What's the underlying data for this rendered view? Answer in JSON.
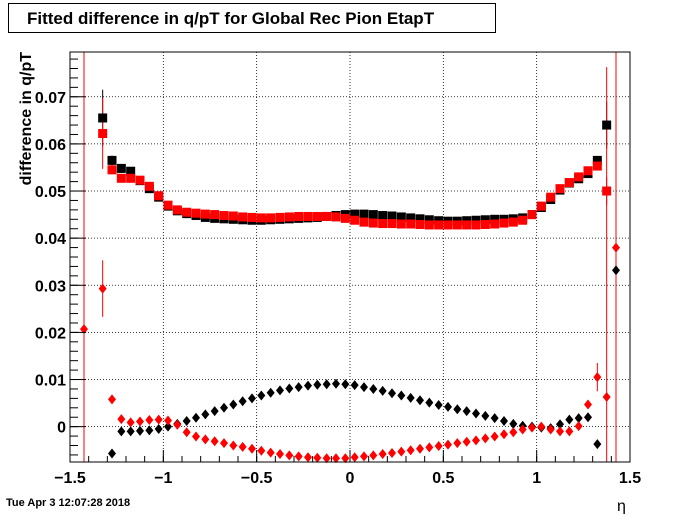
{
  "chart_data": {
    "type": "scatter",
    "title": "Fitted difference in q/pT for Global Rec Pion EtapT",
    "xlabel": "η",
    "ylabel": "difference in q/pT",
    "xlim": [
      -1.5,
      1.5
    ],
    "ylim": [
      -0.0075,
      0.0795
    ],
    "x_ticks": [
      -1.5,
      -1,
      -0.5,
      0,
      0.5,
      1,
      1.5
    ],
    "x_tick_labels": [
      "−1.5",
      "−1",
      "−0.5",
      "0",
      "0.5",
      "1",
      "1.5"
    ],
    "y_ticks": [
      0,
      0.01,
      0.02,
      0.03,
      0.04,
      0.05,
      0.06,
      0.07
    ],
    "y_tick_labels": [
      "0",
      "0.01",
      "0.02",
      "0.03",
      "0.04",
      "0.05",
      "0.06",
      "0.07"
    ],
    "grid": true,
    "series": [
      {
        "marker": "square",
        "color": "#000000",
        "points": [
          [
            -1.325,
            0.0655,
            0.006
          ],
          [
            -1.275,
            0.0565,
            0.001
          ],
          [
            -1.225,
            0.0548,
            0.0005
          ],
          [
            -1.175,
            0.0542,
            0.0003
          ],
          [
            -1.125,
            0.0522,
            0
          ],
          [
            -1.075,
            0.0505,
            0
          ],
          [
            -1.025,
            0.0487,
            0
          ],
          [
            -0.975,
            0.0468,
            0
          ],
          [
            -0.925,
            0.0458,
            0
          ],
          [
            -0.875,
            0.0452,
            0
          ],
          [
            -0.825,
            0.0448,
            0
          ],
          [
            -0.775,
            0.0444,
            0
          ],
          [
            -0.725,
            0.0442,
            0
          ],
          [
            -0.675,
            0.0441,
            0
          ],
          [
            -0.625,
            0.044,
            0
          ],
          [
            -0.575,
            0.0439,
            0
          ],
          [
            -0.525,
            0.0438,
            0
          ],
          [
            -0.475,
            0.0438,
            0
          ],
          [
            -0.425,
            0.0439,
            0
          ],
          [
            -0.375,
            0.044,
            0
          ],
          [
            -0.325,
            0.0441,
            0
          ],
          [
            -0.275,
            0.0442,
            0
          ],
          [
            -0.225,
            0.0443,
            0
          ],
          [
            -0.175,
            0.0444,
            0
          ],
          [
            -0.125,
            0.0446,
            0
          ],
          [
            -0.075,
            0.0448,
            0
          ],
          [
            -0.025,
            0.045,
            0
          ],
          [
            0.025,
            0.0451,
            0
          ],
          [
            0.075,
            0.0451,
            0
          ],
          [
            0.125,
            0.045,
            0
          ],
          [
            0.175,
            0.0448,
            0
          ],
          [
            0.225,
            0.0447,
            0
          ],
          [
            0.275,
            0.0445,
            0
          ],
          [
            0.325,
            0.0443,
            0
          ],
          [
            0.375,
            0.0441,
            0
          ],
          [
            0.425,
            0.0439,
            0
          ],
          [
            0.475,
            0.0437,
            0
          ],
          [
            0.525,
            0.0436,
            0
          ],
          [
            0.575,
            0.0436,
            0
          ],
          [
            0.625,
            0.0437,
            0
          ],
          [
            0.675,
            0.0438,
            0
          ],
          [
            0.725,
            0.0439,
            0
          ],
          [
            0.775,
            0.044,
            0
          ],
          [
            0.825,
            0.044,
            0
          ],
          [
            0.875,
            0.0441,
            0
          ],
          [
            0.925,
            0.0443,
            0
          ],
          [
            0.975,
            0.045,
            0
          ],
          [
            1.025,
            0.0465,
            0
          ],
          [
            1.075,
            0.0482,
            0
          ],
          [
            1.125,
            0.0502,
            0
          ],
          [
            1.175,
            0.0517,
            0
          ],
          [
            1.225,
            0.0526,
            0
          ],
          [
            1.275,
            0.0537,
            0.0003
          ],
          [
            1.325,
            0.0565,
            0.0008
          ],
          [
            1.375,
            0.064,
            0.005
          ]
        ]
      },
      {
        "marker": "square",
        "color": "#ff0000",
        "points": [
          [
            -1.325,
            0.0622,
            0.0075
          ],
          [
            -1.275,
            0.0545,
            0.001
          ],
          [
            -1.225,
            0.0527,
            0.0005
          ],
          [
            -1.175,
            0.0527,
            0.0003
          ],
          [
            -1.125,
            0.0523,
            0
          ],
          [
            -1.075,
            0.051,
            0
          ],
          [
            -1.025,
            0.049,
            0
          ],
          [
            -0.975,
            0.047,
            0
          ],
          [
            -0.925,
            0.046,
            0
          ],
          [
            -0.875,
            0.0455,
            0
          ],
          [
            -0.825,
            0.0453,
            0
          ],
          [
            -0.775,
            0.0451,
            0
          ],
          [
            -0.725,
            0.045,
            0
          ],
          [
            -0.675,
            0.0448,
            0
          ],
          [
            -0.625,
            0.0447,
            0
          ],
          [
            -0.575,
            0.0445,
            0
          ],
          [
            -0.525,
            0.0444,
            0
          ],
          [
            -0.475,
            0.0443,
            0
          ],
          [
            -0.425,
            0.0443,
            0
          ],
          [
            -0.375,
            0.0444,
            0
          ],
          [
            -0.325,
            0.0445,
            0
          ],
          [
            -0.275,
            0.0446,
            0
          ],
          [
            -0.225,
            0.0446,
            0
          ],
          [
            -0.175,
            0.0446,
            0
          ],
          [
            -0.125,
            0.0446,
            0
          ],
          [
            -0.075,
            0.0445,
            0
          ],
          [
            -0.025,
            0.0442,
            0
          ],
          [
            0.025,
            0.0438,
            0
          ],
          [
            0.075,
            0.0434,
            0
          ],
          [
            0.125,
            0.0432,
            0
          ],
          [
            0.175,
            0.0431,
            0
          ],
          [
            0.225,
            0.0431,
            0
          ],
          [
            0.275,
            0.043,
            0
          ],
          [
            0.325,
            0.043,
            0
          ],
          [
            0.375,
            0.0429,
            0
          ],
          [
            0.425,
            0.0428,
            0
          ],
          [
            0.475,
            0.0428,
            0
          ],
          [
            0.525,
            0.0428,
            0
          ],
          [
            0.575,
            0.0428,
            0
          ],
          [
            0.625,
            0.0428,
            0
          ],
          [
            0.675,
            0.0428,
            0
          ],
          [
            0.725,
            0.0429,
            0
          ],
          [
            0.775,
            0.043,
            0
          ],
          [
            0.825,
            0.0432,
            0
          ],
          [
            0.875,
            0.0434,
            0
          ],
          [
            0.925,
            0.0438,
            0
          ],
          [
            0.975,
            0.045,
            0
          ],
          [
            1.025,
            0.0468,
            0
          ],
          [
            1.075,
            0.0487,
            0
          ],
          [
            1.125,
            0.0505,
            0
          ],
          [
            1.175,
            0.0518,
            0
          ],
          [
            1.225,
            0.053,
            0
          ],
          [
            1.275,
            0.0543,
            0.0004
          ],
          [
            1.325,
            0.0553,
            0.0008
          ],
          [
            1.375,
            0.05,
            0.003
          ]
        ]
      },
      {
        "marker": "diamond",
        "color": "#000000",
        "points": [
          [
            -1.275,
            -0.0057,
            0
          ],
          [
            -1.225,
            -0.001,
            0
          ],
          [
            -1.175,
            -0.001,
            0
          ],
          [
            -1.125,
            -0.0009,
            0
          ],
          [
            -1.075,
            -0.0008,
            0
          ],
          [
            -1.025,
            -0.0005,
            0
          ],
          [
            -0.975,
            0,
            0
          ],
          [
            -0.925,
            0.0006,
            0
          ],
          [
            -0.875,
            0.0012,
            0
          ],
          [
            -0.825,
            0.0019,
            0
          ],
          [
            -0.775,
            0.0026,
            0
          ],
          [
            -0.725,
            0.0033,
            0
          ],
          [
            -0.675,
            0.004,
            0
          ],
          [
            -0.625,
            0.0047,
            0
          ],
          [
            -0.575,
            0.0054,
            0
          ],
          [
            -0.525,
            0.006,
            0
          ],
          [
            -0.475,
            0.0066,
            0
          ],
          [
            -0.425,
            0.0072,
            0
          ],
          [
            -0.375,
            0.0077,
            0
          ],
          [
            -0.325,
            0.0081,
            0
          ],
          [
            -0.275,
            0.0084,
            0
          ],
          [
            -0.225,
            0.0087,
            0
          ],
          [
            -0.175,
            0.0089,
            0
          ],
          [
            -0.125,
            0.009,
            0
          ],
          [
            -0.075,
            0.0091,
            0
          ],
          [
            -0.025,
            0.009,
            0
          ],
          [
            0.025,
            0.0088,
            0
          ],
          [
            0.075,
            0.0084,
            0
          ],
          [
            0.125,
            0.008,
            0
          ],
          [
            0.175,
            0.0076,
            0
          ],
          [
            0.225,
            0.0071,
            0
          ],
          [
            0.275,
            0.0066,
            0
          ],
          [
            0.325,
            0.0061,
            0
          ],
          [
            0.375,
            0.0056,
            0
          ],
          [
            0.425,
            0.0051,
            0
          ],
          [
            0.475,
            0.0046,
            0
          ],
          [
            0.525,
            0.0042,
            0
          ],
          [
            0.575,
            0.0037,
            0
          ],
          [
            0.625,
            0.0033,
            0
          ],
          [
            0.675,
            0.0028,
            0
          ],
          [
            0.725,
            0.0023,
            0
          ],
          [
            0.775,
            0.0018,
            0
          ],
          [
            0.825,
            0.0012,
            0
          ],
          [
            0.875,
            0.0006,
            0
          ],
          [
            0.925,
            0.0002,
            0
          ],
          [
            0.975,
            0,
            0
          ],
          [
            1.025,
            -0.0002,
            0
          ],
          [
            1.075,
            -0.0003,
            0
          ],
          [
            1.125,
            0.0005,
            0
          ],
          [
            1.175,
            0.0015,
            0
          ],
          [
            1.225,
            0.0018,
            0
          ],
          [
            1.275,
            0.002,
            0
          ],
          [
            1.325,
            -0.0037,
            0
          ],
          [
            1.425,
            0.0332,
            0
          ]
        ]
      },
      {
        "marker": "diamond",
        "color": "#ff0000",
        "points": [
          [
            -1.425,
            0.0207,
            0.08
          ],
          [
            -1.325,
            0.0293,
            0.006
          ],
          [
            -1.275,
            0.0058,
            0
          ],
          [
            -1.225,
            0.0016,
            0
          ],
          [
            -1.175,
            0.0009,
            0
          ],
          [
            -1.125,
            0.0011,
            0
          ],
          [
            -1.075,
            0.0014,
            0
          ],
          [
            -1.025,
            0.0015,
            0
          ],
          [
            -0.975,
            0.0013,
            0
          ],
          [
            -0.925,
            0.0004,
            0
          ],
          [
            -0.875,
            -0.0012,
            0
          ],
          [
            -0.825,
            -0.0021,
            0
          ],
          [
            -0.775,
            -0.0027,
            0
          ],
          [
            -0.725,
            -0.0031,
            0
          ],
          [
            -0.675,
            -0.0035,
            0
          ],
          [
            -0.625,
            -0.004,
            0
          ],
          [
            -0.575,
            -0.0043,
            0
          ],
          [
            -0.525,
            -0.0047,
            0
          ],
          [
            -0.475,
            -0.0051,
            0
          ],
          [
            -0.425,
            -0.0055,
            0
          ],
          [
            -0.375,
            -0.0058,
            0
          ],
          [
            -0.325,
            -0.0061,
            0
          ],
          [
            -0.275,
            -0.0063,
            0
          ],
          [
            -0.225,
            -0.0065,
            0
          ],
          [
            -0.175,
            -0.0066,
            0
          ],
          [
            -0.125,
            -0.0067,
            0
          ],
          [
            -0.075,
            -0.0067,
            0
          ],
          [
            -0.025,
            -0.0067,
            0
          ],
          [
            0.025,
            -0.0065,
            0
          ],
          [
            0.075,
            -0.0063,
            0
          ],
          [
            0.125,
            -0.0061,
            0
          ],
          [
            0.175,
            -0.0058,
            0
          ],
          [
            0.225,
            -0.0056,
            0
          ],
          [
            0.275,
            -0.0053,
            0
          ],
          [
            0.325,
            -0.005,
            0
          ],
          [
            0.375,
            -0.0047,
            0
          ],
          [
            0.425,
            -0.0044,
            0
          ],
          [
            0.475,
            -0.0041,
            0
          ],
          [
            0.525,
            -0.0038,
            0
          ],
          [
            0.575,
            -0.0035,
            0
          ],
          [
            0.625,
            -0.0032,
            0
          ],
          [
            0.675,
            -0.0029,
            0
          ],
          [
            0.725,
            -0.0025,
            0
          ],
          [
            0.775,
            -0.0021,
            0
          ],
          [
            0.825,
            -0.0016,
            0
          ],
          [
            0.875,
            -0.0012,
            0
          ],
          [
            0.925,
            -0.0006,
            0
          ],
          [
            0.975,
            -0.0002,
            0
          ],
          [
            1.025,
            0,
            0
          ],
          [
            1.075,
            -0.0006,
            0
          ],
          [
            1.125,
            -0.001,
            0
          ],
          [
            1.175,
            -0.001,
            0
          ],
          [
            1.225,
            0.0001,
            0
          ],
          [
            1.275,
            0.0047,
            0
          ],
          [
            1.325,
            0.0105,
            0.003
          ],
          [
            1.375,
            0.0063,
            0.07
          ],
          [
            1.425,
            0.038,
            0.08
          ]
        ]
      }
    ]
  },
  "footer": {
    "timestamp": "Tue Apr  3 12:07:28 2018"
  },
  "colors": {
    "black_series": "#000000",
    "red_series": "#ff0000",
    "grid": "#000000"
  }
}
